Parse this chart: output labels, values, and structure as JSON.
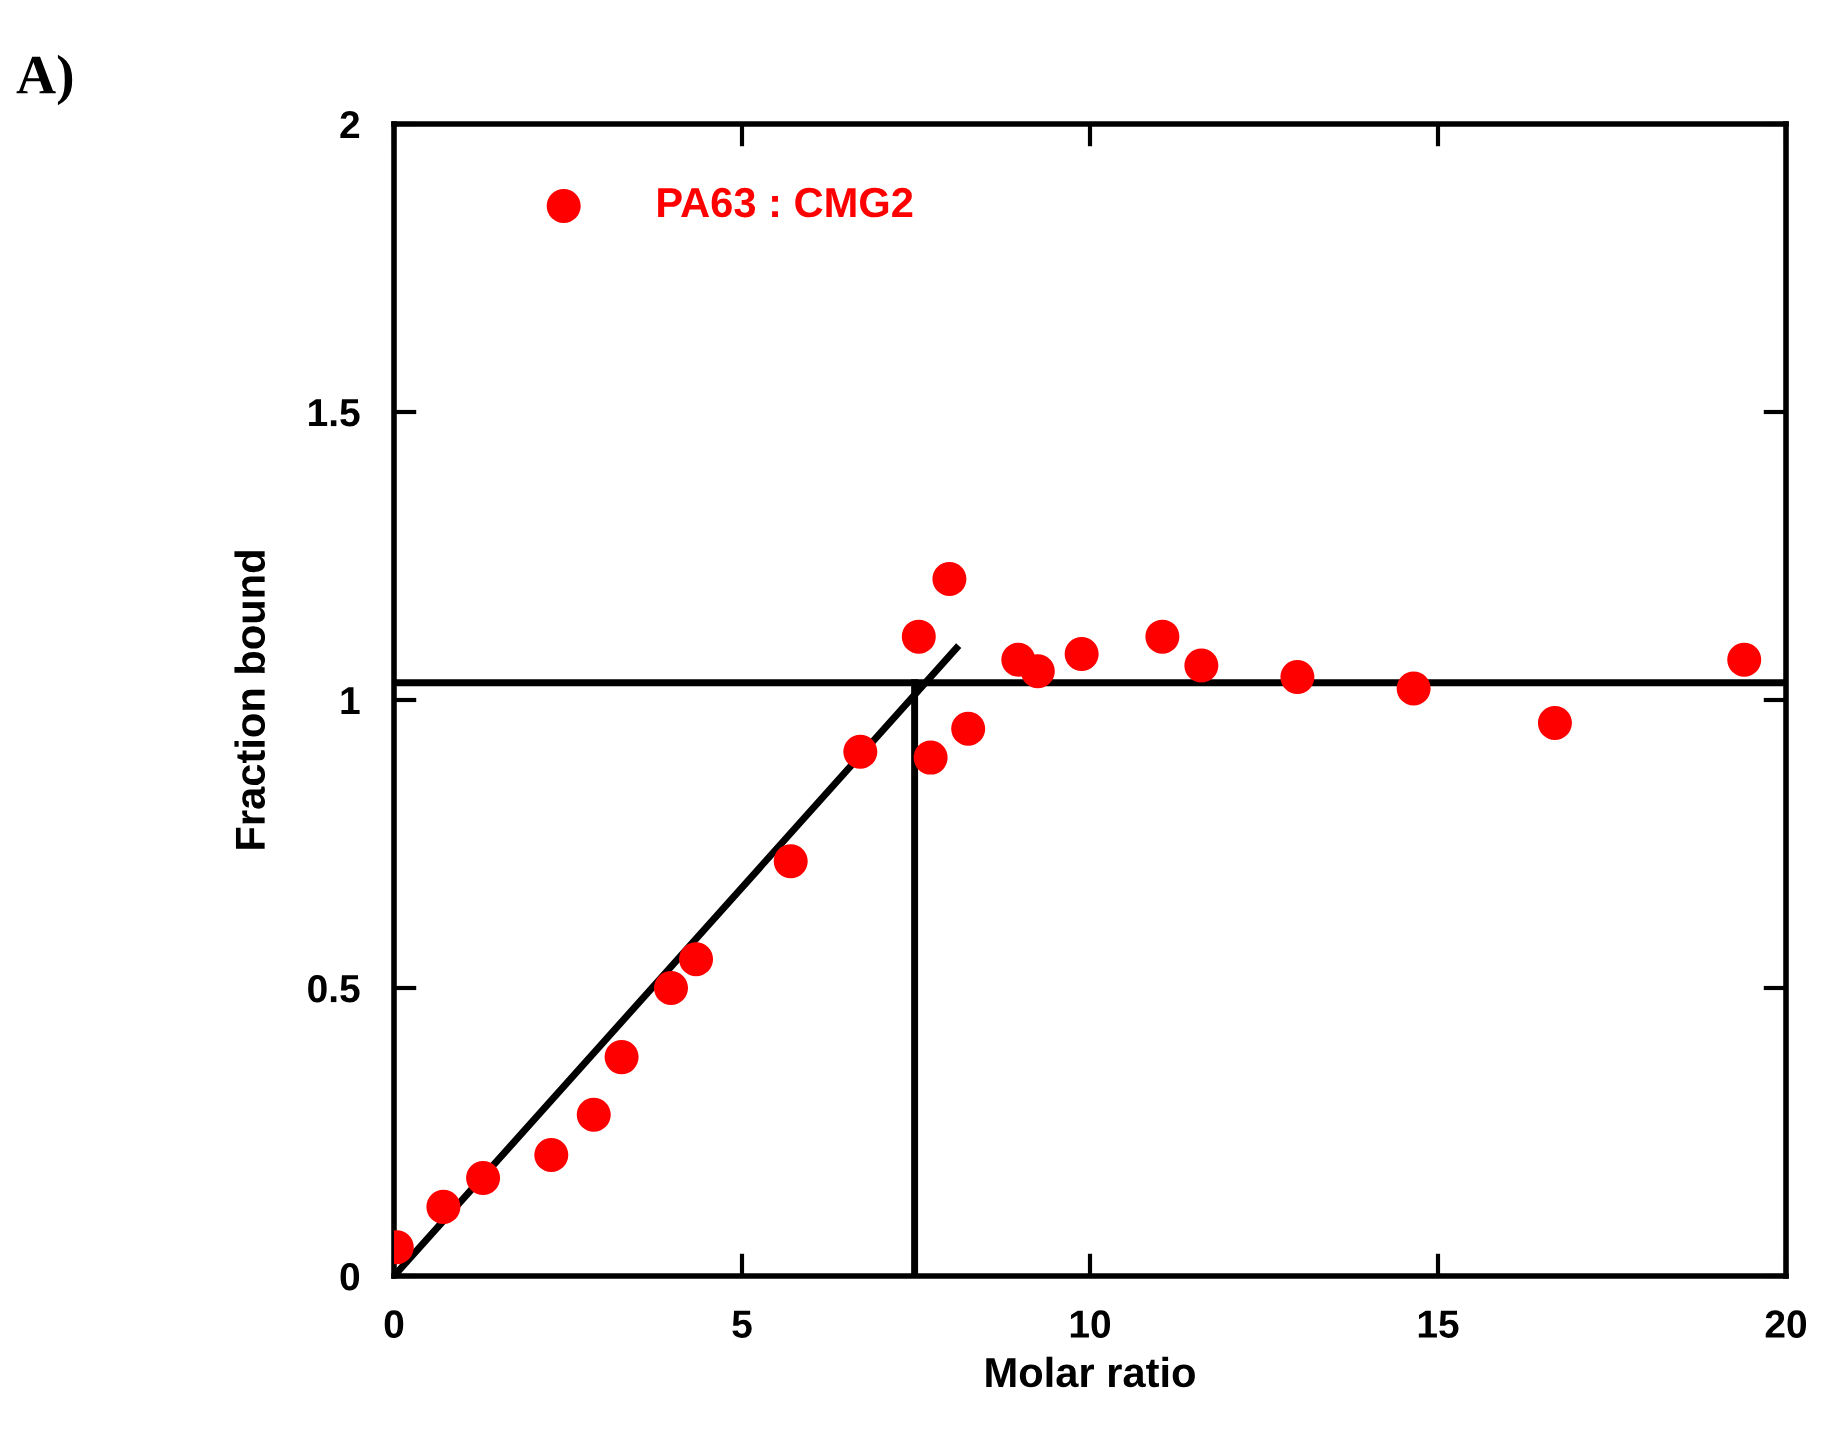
{
  "chart_data": {
    "type": "scatter",
    "xlabel": "Molar ratio",
    "ylabel": "Fraction bound",
    "annotations": [
      "A)"
    ],
    "xlim": [
      0,
      20
    ],
    "xticks": [
      0,
      5,
      10,
      15,
      20
    ],
    "ylim": [
      0,
      2
    ],
    "yticks": [
      0,
      0.5,
      1,
      1.5,
      2
    ],
    "grid": false,
    "legend": "top left",
    "ref_lines": [
      {
        "axis": "y",
        "value": 1.03,
        "color": "#000000",
        "line_style": "solid"
      }
    ],
    "series": [
      {
        "name": "PA63 : CMG2",
        "marker": "circle",
        "color": "#ff0000",
        "x": [
          0.04,
          0.71,
          1.28,
          2.26,
          2.87,
          3.27,
          3.98,
          4.34,
          5.7,
          6.7,
          7.54,
          7.98,
          7.71,
          8.25,
          8.97,
          9.25,
          9.88,
          11.04,
          11.6,
          12.98,
          14.65,
          16.68,
          19.4
        ],
        "values": [
          0.05,
          0.12,
          0.17,
          0.21,
          0.28,
          0.38,
          0.5,
          0.55,
          0.72,
          0.91,
          1.11,
          1.21,
          0.9,
          0.95,
          1.07,
          1.05,
          1.08,
          1.11,
          1.06,
          1.04,
          1.02,
          0.96,
          1.07
        ]
      },
      {
        "type": "line",
        "marker": "none",
        "color": "#000000",
        "x": [
          0,
          8.08
        ],
        "values": [
          0,
          1.09
        ]
      },
      {
        "type": "line",
        "marker": "none",
        "color": "#000000",
        "x": [
          7.48,
          7.48
        ],
        "values": [
          0,
          1.03
        ]
      }
    ]
  }
}
